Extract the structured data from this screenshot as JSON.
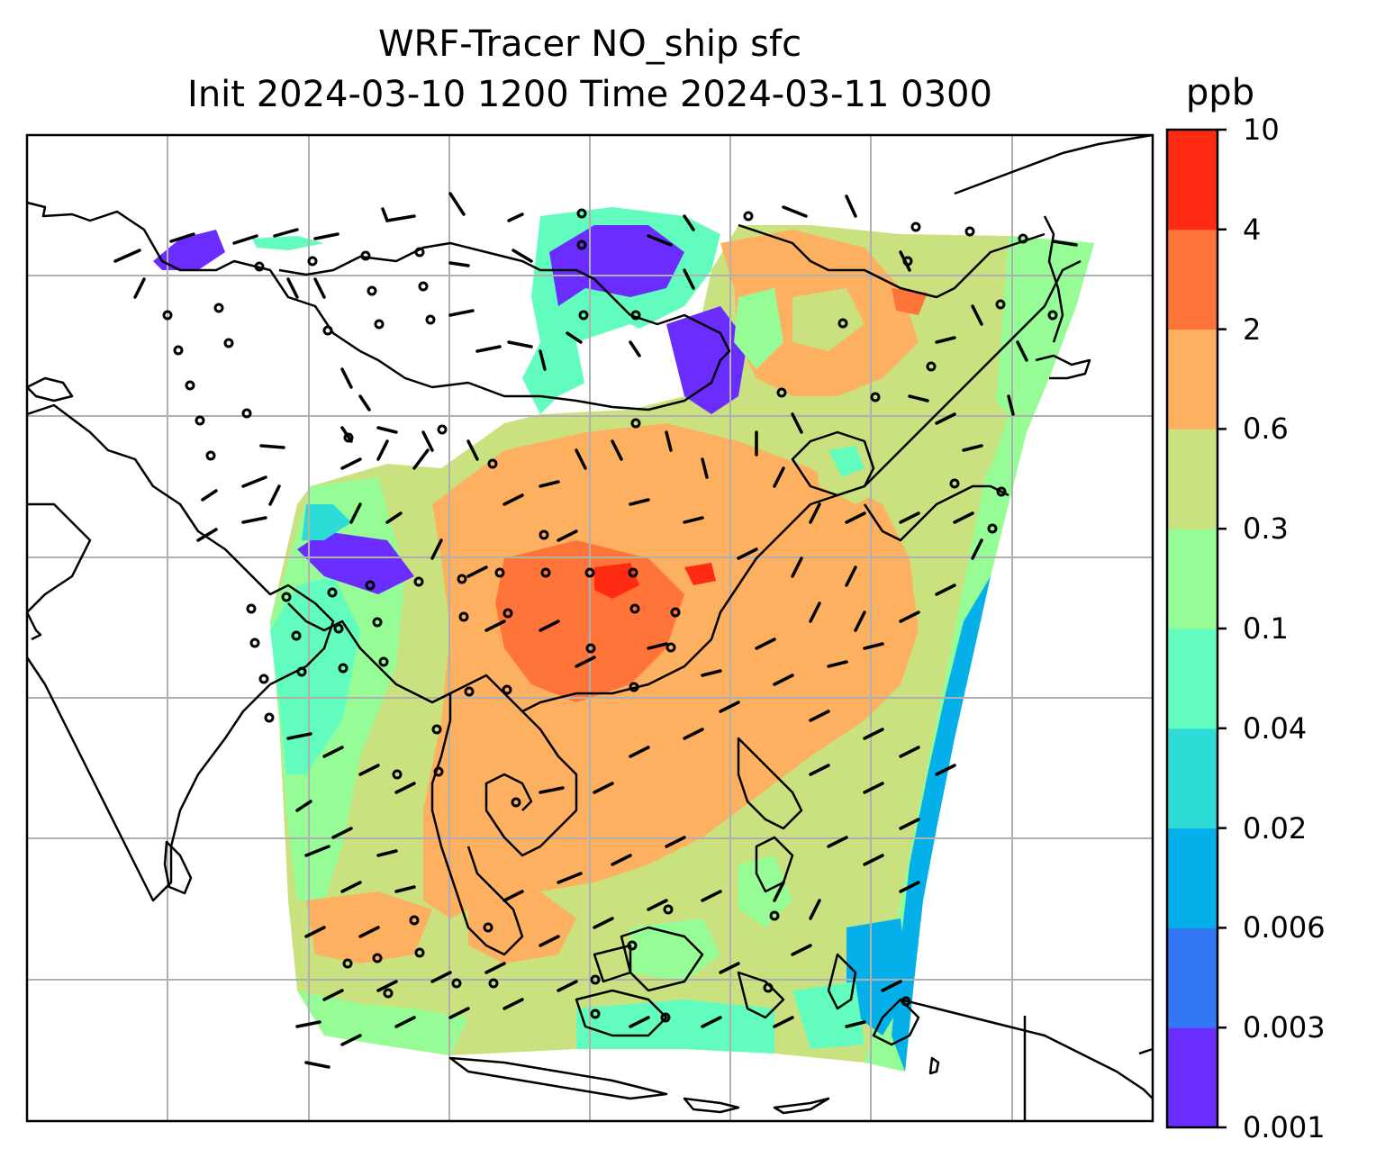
{
  "title": {
    "line1": "WRF-Tracer NO_ship sfc",
    "line2": "Init 2024-03-10 1200 Time 2024-03-11 0300"
  },
  "colorbar": {
    "unit": "ppb",
    "levels": [
      "0.001",
      "0.003",
      "0.006",
      "0.02",
      "0.04",
      "0.1",
      "0.3",
      "0.6",
      "2",
      "4",
      "10"
    ],
    "colors": [
      "#6a2cff",
      "#3377f5",
      "#05b0ea",
      "#2ddcd6",
      "#62fcbe",
      "#96fc96",
      "#c9e27f",
      "#fdb060",
      "#ff7439",
      "#ff2b13"
    ]
  },
  "map": {
    "background": "#ffffff",
    "gridline_color": "#b0b0b0",
    "coastline_color": "#000000",
    "wind_barb_color": "#000000"
  }
}
